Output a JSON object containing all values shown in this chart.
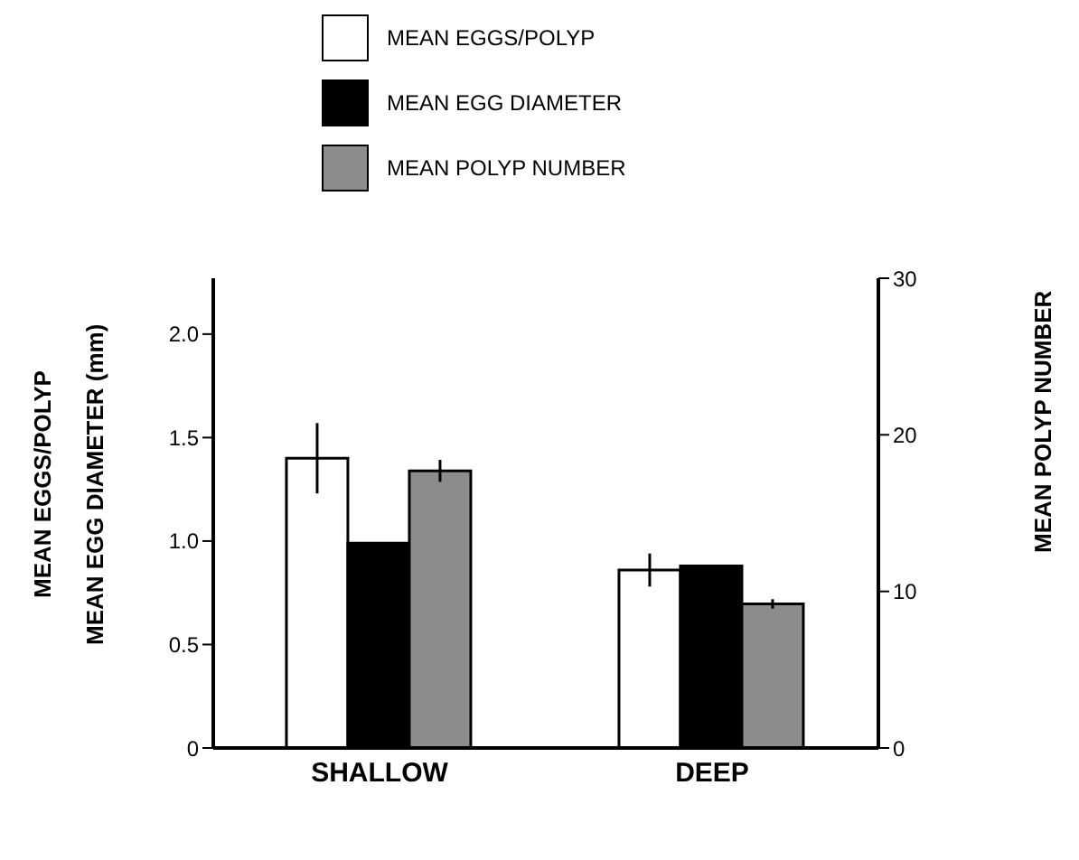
{
  "chart_data": {
    "type": "bar",
    "categories": [
      "SHALLOW",
      "DEEP"
    ],
    "ylabel": "MEAN EGGS/POLYP\nMEAN EGG DIAMETER (mm)",
    "y2label": "MEAN POLYP NUMBER",
    "series": [
      {
        "name": "MEAN EGGS/POLYP",
        "color": "#ffffff",
        "values": [
          1.4,
          0.86
        ],
        "errors": [
          0.17,
          0.08
        ]
      },
      {
        "name": "MEAN EGG DIAMETER",
        "color": "#000000",
        "values": [
          0.99,
          0.88
        ],
        "errors": [
          null,
          null
        ]
      },
      {
        "name": "MEAN POLYP NUMBER",
        "color": "#8c8c8c",
        "axis": "y2",
        "values": [
          17.7,
          9.2
        ],
        "errors": [
          0.7,
          0.3
        ]
      }
    ],
    "ylim": [
      0,
      2.27
    ],
    "yticks": [
      0,
      0.5,
      {
        "value": 1,
        "label": "1.0"
      },
      1.5,
      {
        "value": 2,
        "label": "2.0"
      }
    ],
    "y2lim": [
      0,
      30
    ],
    "y2ticks": [
      0,
      10,
      20,
      30
    ],
    "legend": "top",
    "grid": false
  }
}
